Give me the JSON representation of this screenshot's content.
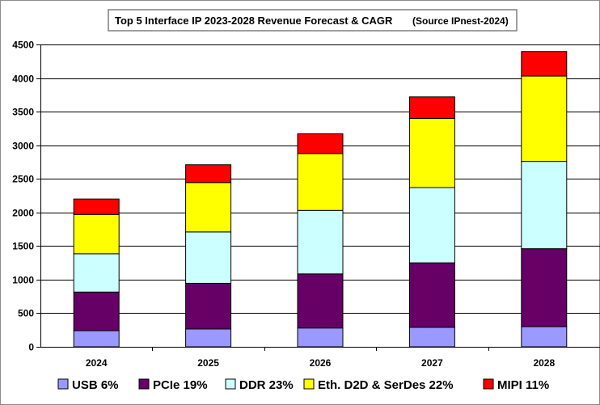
{
  "chart_data": {
    "type": "bar",
    "stacked": true,
    "title": "Top 5 Interface IP 2023-2028 Revenue Forecast & CAGR",
    "source": "(Source IPnest-2024)",
    "categories": [
      "2024",
      "2025",
      "2026",
      "2027",
      "2028"
    ],
    "series": [
      {
        "name": "USB 6%",
        "color": "#9999ff",
        "values": [
          240,
          265,
          280,
          290,
          300
        ]
      },
      {
        "name": "PCIe 19%",
        "color": "#660066",
        "values": [
          575,
          680,
          805,
          960,
          1160
        ]
      },
      {
        "name": "DDR 23%",
        "color": "#ccffff",
        "values": [
          570,
          765,
          945,
          1120,
          1300
        ]
      },
      {
        "name": "Eth. D2D & SerDes 22%",
        "color": "#ffff00",
        "values": [
          585,
          735,
          845,
          1030,
          1270
        ]
      },
      {
        "name": "MIPI 11%",
        "color": "#ff0000",
        "values": [
          230,
          265,
          295,
          320,
          365
        ]
      }
    ],
    "ylim": [
      0,
      4500
    ],
    "yticks": [
      "0",
      "500",
      "1000",
      "1500",
      "2000",
      "2500",
      "3000",
      "3500",
      "4000",
      "4500"
    ],
    "grid": "horizontal",
    "legend": "bottom",
    "xlabel": "",
    "ylabel": ""
  }
}
